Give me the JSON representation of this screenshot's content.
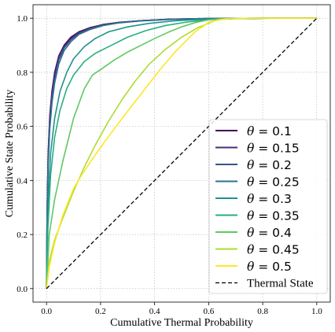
{
  "chart_data": {
    "type": "line",
    "xlabel": "Cumulative Thermal Probability",
    "ylabel": "Cumulative State Probability",
    "xlim": [
      -0.05,
      1.05
    ],
    "ylim": [
      -0.05,
      1.05
    ],
    "xticks": [
      0.0,
      0.2,
      0.4,
      0.6,
      0.8,
      1.0
    ],
    "yticks": [
      0.0,
      0.2,
      0.4,
      0.6,
      0.8,
      1.0
    ],
    "xtick_labels": [
      "0.0",
      "0.2",
      "0.4",
      "0.6",
      "0.8",
      "1.0"
    ],
    "ytick_labels": [
      "0.0",
      "0.2",
      "0.4",
      "0.6",
      "0.8",
      "1.0"
    ],
    "grid": true,
    "legend_position": "bottom-right",
    "series": [
      {
        "name": "0.1",
        "color": "#440154",
        "x": [
          0,
          0.002,
          0.006,
          0.012,
          0.02,
          0.03,
          0.045,
          0.065,
          0.09,
          0.12,
          0.16,
          0.21,
          0.27,
          0.35,
          0.45,
          0.6,
          0.8,
          1.0
        ],
        "y": [
          0,
          0.28,
          0.5,
          0.64,
          0.73,
          0.8,
          0.86,
          0.9,
          0.93,
          0.95,
          0.965,
          0.977,
          0.985,
          0.991,
          0.996,
          0.999,
          1.0,
          1.0
        ]
      },
      {
        "name": "0.15",
        "color": "#472d7b",
        "x": [
          0,
          0.002,
          0.006,
          0.012,
          0.02,
          0.03,
          0.045,
          0.065,
          0.09,
          0.12,
          0.16,
          0.21,
          0.27,
          0.35,
          0.45,
          0.6,
          0.8,
          1.0
        ],
        "y": [
          0,
          0.27,
          0.49,
          0.63,
          0.72,
          0.79,
          0.855,
          0.895,
          0.925,
          0.947,
          0.963,
          0.976,
          0.984,
          0.991,
          0.996,
          0.999,
          1.0,
          1.0
        ]
      },
      {
        "name": "0.2",
        "color": "#3b528b",
        "x": [
          0,
          0.002,
          0.006,
          0.012,
          0.02,
          0.03,
          0.045,
          0.065,
          0.09,
          0.12,
          0.16,
          0.21,
          0.27,
          0.35,
          0.45,
          0.6,
          0.8,
          1.0
        ],
        "y": [
          0,
          0.26,
          0.47,
          0.61,
          0.7,
          0.775,
          0.845,
          0.89,
          0.92,
          0.944,
          0.961,
          0.975,
          0.984,
          0.991,
          0.996,
          0.999,
          1.0,
          1.0
        ]
      },
      {
        "name": "0.25",
        "color": "#2c728e",
        "x": [
          0,
          0.002,
          0.006,
          0.012,
          0.02,
          0.03,
          0.045,
          0.065,
          0.09,
          0.12,
          0.16,
          0.21,
          0.27,
          0.35,
          0.45,
          0.6,
          0.8,
          1.0
        ],
        "y": [
          0,
          0.25,
          0.45,
          0.59,
          0.685,
          0.76,
          0.83,
          0.88,
          0.913,
          0.94,
          0.958,
          0.973,
          0.983,
          0.99,
          0.995,
          0.999,
          1.0,
          1.0
        ]
      },
      {
        "name": "0.3",
        "color": "#21918c",
        "x": [
          0,
          0.005,
          0.015,
          0.03,
          0.05,
          0.075,
          0.1,
          0.14,
          0.18,
          0.23,
          0.3,
          0.38,
          0.47,
          0.56,
          0.65,
          0.8,
          1.0
        ],
        "y": [
          0,
          0.3,
          0.5,
          0.63,
          0.73,
          0.8,
          0.85,
          0.895,
          0.925,
          0.95,
          0.968,
          0.981,
          0.99,
          0.995,
          0.998,
          1.0,
          1.0
        ]
      },
      {
        "name": "0.35",
        "color": "#28ae80",
        "x": [
          0,
          0.005,
          0.015,
          0.03,
          0.05,
          0.075,
          0.1,
          0.14,
          0.18,
          0.24,
          0.3,
          0.37,
          0.44,
          0.52,
          0.6,
          0.7,
          0.85,
          1.0
        ],
        "y": [
          0,
          0.22,
          0.42,
          0.56,
          0.66,
          0.74,
          0.79,
          0.84,
          0.87,
          0.9,
          0.93,
          0.955,
          0.973,
          0.986,
          0.994,
          0.998,
          1.0,
          1.0
        ]
      },
      {
        "name": "0.4",
        "color": "#5ec962",
        "x": [
          0,
          0.01,
          0.03,
          0.06,
          0.1,
          0.14,
          0.17,
          0.2,
          0.25,
          0.3,
          0.35,
          0.4,
          0.45,
          0.5,
          0.55,
          0.6,
          0.65,
          0.8,
          1.0
        ],
        "y": [
          0,
          0.2,
          0.33,
          0.47,
          0.63,
          0.74,
          0.79,
          0.81,
          0.845,
          0.875,
          0.9,
          0.925,
          0.948,
          0.968,
          0.984,
          0.994,
          0.998,
          1.0,
          1.0
        ]
      },
      {
        "name": "0.45",
        "color": "#addc30",
        "x": [
          0,
          0.01,
          0.03,
          0.06,
          0.1,
          0.14,
          0.18,
          0.23,
          0.28,
          0.33,
          0.38,
          0.44,
          0.5,
          0.56,
          0.62,
          0.66,
          0.75,
          0.9,
          1.0
        ],
        "y": [
          0,
          0.1,
          0.18,
          0.26,
          0.36,
          0.45,
          0.53,
          0.62,
          0.7,
          0.77,
          0.83,
          0.885,
          0.93,
          0.965,
          0.99,
          0.998,
          1.0,
          1.0,
          1.0
        ]
      },
      {
        "name": "0.5",
        "color": "#fde725",
        "x": [
          0,
          0.01,
          0.03,
          0.06,
          0.1,
          0.13,
          0.17,
          0.22,
          0.28,
          0.35,
          0.42,
          0.48,
          0.55,
          0.6,
          0.64,
          0.68,
          0.75,
          0.9,
          1.0
        ],
        "y": [
          0,
          0.08,
          0.17,
          0.27,
          0.37,
          0.42,
          0.48,
          0.55,
          0.63,
          0.72,
          0.81,
          0.88,
          0.95,
          0.985,
          0.995,
          0.998,
          1.0,
          1.0,
          1.0
        ]
      },
      {
        "name": "Thermal State",
        "color": "#000000",
        "dashed": true,
        "x": [
          0,
          1
        ],
        "y": [
          0,
          1
        ]
      }
    ]
  }
}
